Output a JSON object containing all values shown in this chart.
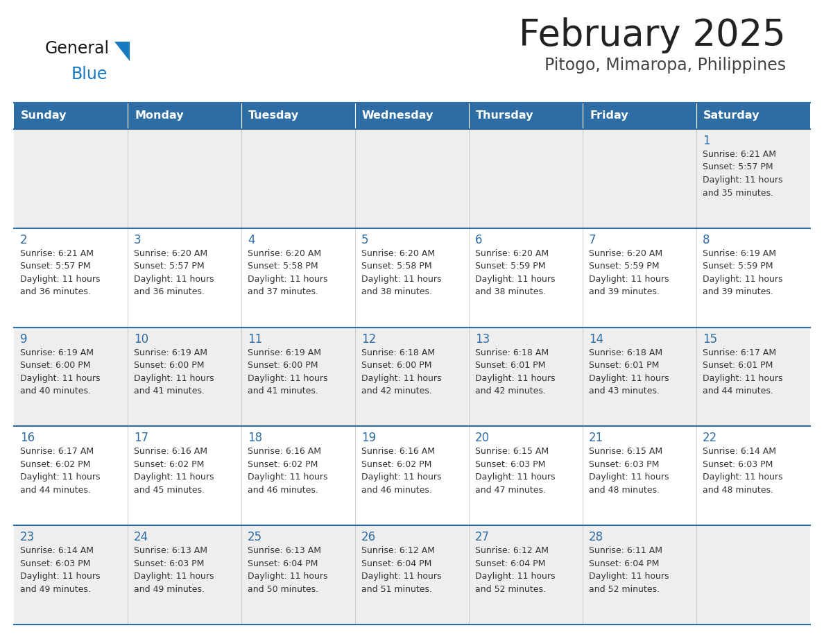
{
  "title": "February 2025",
  "subtitle": "Pitogo, Mimaropa, Philippines",
  "header_bg": "#2E6DA4",
  "header_text": "#FFFFFF",
  "header_days": [
    "Sunday",
    "Monday",
    "Tuesday",
    "Wednesday",
    "Thursday",
    "Friday",
    "Saturday"
  ],
  "row_bg_even": "#EEEEEE",
  "row_bg_odd": "#FFFFFF",
  "cell_border": "#2E6DA4",
  "day_number_color": "#2E6DA4",
  "info_text_color": "#333333",
  "calendar": [
    [
      {
        "day": null,
        "sunrise": null,
        "sunset": null,
        "daylight": ""
      },
      {
        "day": null,
        "sunrise": null,
        "sunset": null,
        "daylight": ""
      },
      {
        "day": null,
        "sunrise": null,
        "sunset": null,
        "daylight": ""
      },
      {
        "day": null,
        "sunrise": null,
        "sunset": null,
        "daylight": ""
      },
      {
        "day": null,
        "sunrise": null,
        "sunset": null,
        "daylight": ""
      },
      {
        "day": null,
        "sunrise": null,
        "sunset": null,
        "daylight": ""
      },
      {
        "day": 1,
        "sunrise": "6:21 AM",
        "sunset": "5:57 PM",
        "daylight": "11 hours and 35 minutes."
      }
    ],
    [
      {
        "day": 2,
        "sunrise": "6:21 AM",
        "sunset": "5:57 PM",
        "daylight": "11 hours and 36 minutes."
      },
      {
        "day": 3,
        "sunrise": "6:20 AM",
        "sunset": "5:57 PM",
        "daylight": "11 hours and 36 minutes."
      },
      {
        "day": 4,
        "sunrise": "6:20 AM",
        "sunset": "5:58 PM",
        "daylight": "11 hours and 37 minutes."
      },
      {
        "day": 5,
        "sunrise": "6:20 AM",
        "sunset": "5:58 PM",
        "daylight": "11 hours and 38 minutes."
      },
      {
        "day": 6,
        "sunrise": "6:20 AM",
        "sunset": "5:59 PM",
        "daylight": "11 hours and 38 minutes."
      },
      {
        "day": 7,
        "sunrise": "6:20 AM",
        "sunset": "5:59 PM",
        "daylight": "11 hours and 39 minutes."
      },
      {
        "day": 8,
        "sunrise": "6:19 AM",
        "sunset": "5:59 PM",
        "daylight": "11 hours and 39 minutes."
      }
    ],
    [
      {
        "day": 9,
        "sunrise": "6:19 AM",
        "sunset": "6:00 PM",
        "daylight": "11 hours and 40 minutes."
      },
      {
        "day": 10,
        "sunrise": "6:19 AM",
        "sunset": "6:00 PM",
        "daylight": "11 hours and 41 minutes."
      },
      {
        "day": 11,
        "sunrise": "6:19 AM",
        "sunset": "6:00 PM",
        "daylight": "11 hours and 41 minutes."
      },
      {
        "day": 12,
        "sunrise": "6:18 AM",
        "sunset": "6:00 PM",
        "daylight": "11 hours and 42 minutes."
      },
      {
        "day": 13,
        "sunrise": "6:18 AM",
        "sunset": "6:01 PM",
        "daylight": "11 hours and 42 minutes."
      },
      {
        "day": 14,
        "sunrise": "6:18 AM",
        "sunset": "6:01 PM",
        "daylight": "11 hours and 43 minutes."
      },
      {
        "day": 15,
        "sunrise": "6:17 AM",
        "sunset": "6:01 PM",
        "daylight": "11 hours and 44 minutes."
      }
    ],
    [
      {
        "day": 16,
        "sunrise": "6:17 AM",
        "sunset": "6:02 PM",
        "daylight": "11 hours and 44 minutes."
      },
      {
        "day": 17,
        "sunrise": "6:16 AM",
        "sunset": "6:02 PM",
        "daylight": "11 hours and 45 minutes."
      },
      {
        "day": 18,
        "sunrise": "6:16 AM",
        "sunset": "6:02 PM",
        "daylight": "11 hours and 46 minutes."
      },
      {
        "day": 19,
        "sunrise": "6:16 AM",
        "sunset": "6:02 PM",
        "daylight": "11 hours and 46 minutes."
      },
      {
        "day": 20,
        "sunrise": "6:15 AM",
        "sunset": "6:03 PM",
        "daylight": "11 hours and 47 minutes."
      },
      {
        "day": 21,
        "sunrise": "6:15 AM",
        "sunset": "6:03 PM",
        "daylight": "11 hours and 48 minutes."
      },
      {
        "day": 22,
        "sunrise": "6:14 AM",
        "sunset": "6:03 PM",
        "daylight": "11 hours and 48 minutes."
      }
    ],
    [
      {
        "day": 23,
        "sunrise": "6:14 AM",
        "sunset": "6:03 PM",
        "daylight": "11 hours and 49 minutes."
      },
      {
        "day": 24,
        "sunrise": "6:13 AM",
        "sunset": "6:03 PM",
        "daylight": "11 hours and 49 minutes."
      },
      {
        "day": 25,
        "sunrise": "6:13 AM",
        "sunset": "6:04 PM",
        "daylight": "11 hours and 50 minutes."
      },
      {
        "day": 26,
        "sunrise": "6:12 AM",
        "sunset": "6:04 PM",
        "daylight": "11 hours and 51 minutes."
      },
      {
        "day": 27,
        "sunrise": "6:12 AM",
        "sunset": "6:04 PM",
        "daylight": "11 hours and 52 minutes."
      },
      {
        "day": 28,
        "sunrise": "6:11 AM",
        "sunset": "6:04 PM",
        "daylight": "11 hours and 52 minutes."
      },
      {
        "day": null,
        "sunrise": null,
        "sunset": null,
        "daylight": ""
      }
    ]
  ]
}
